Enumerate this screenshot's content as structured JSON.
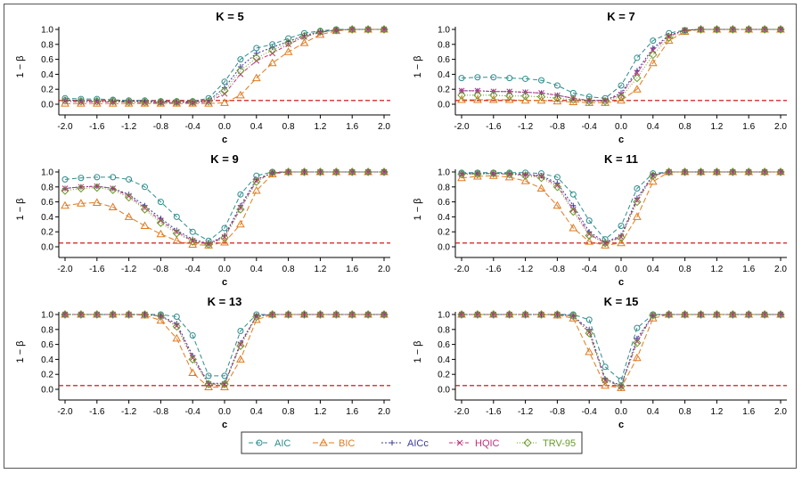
{
  "colors": {
    "AIC": "#2e8b8b",
    "BIC": "#e07a1f",
    "AICc": "#3b3b9a",
    "HQIC": "#c0307a",
    "TRV-95": "#6a9a2a",
    "reference": "#cc0000"
  },
  "markers": {
    "AIC": "circle",
    "BIC": "triangle",
    "AICc": "plus",
    "HQIC": "cross",
    "TRV-95": "diamond"
  },
  "legend": [
    "AIC",
    "BIC",
    "AICc",
    "HQIC",
    "TRV-95"
  ],
  "chart_data": [
    {
      "type": "line",
      "title": "K = 5",
      "xlabel": "c",
      "ylabel": "1 − β",
      "xlim": [
        -2.0,
        2.0
      ],
      "ylim": [
        0.0,
        1.0
      ],
      "reference_line": 0.05,
      "xticks": [
        "-2.0",
        "-1.6",
        "-1.2",
        "-0.8",
        "-0.4",
        "0.0",
        "0.4",
        "0.8",
        "1.2",
        "1.6",
        "2.0"
      ],
      "yticks": [
        "0.0",
        "0.2",
        "0.4",
        "0.6",
        "0.8",
        "1.0"
      ],
      "x": [
        -2.0,
        -1.8,
        -1.6,
        -1.4,
        -1.2,
        -1.0,
        -0.8,
        -0.6,
        -0.4,
        -0.2,
        0.0,
        0.2,
        0.4,
        0.6,
        0.8,
        1.0,
        1.2,
        1.4,
        1.6,
        1.8,
        2.0
      ],
      "series": [
        {
          "name": "AIC",
          "values": [
            0.08,
            0.07,
            0.07,
            0.06,
            0.05,
            0.05,
            0.04,
            0.04,
            0.04,
            0.08,
            0.3,
            0.6,
            0.75,
            0.8,
            0.88,
            0.95,
            0.98,
            1.0,
            1.0,
            1.0,
            1.0
          ]
        },
        {
          "name": "BIC",
          "values": [
            0.01,
            0.01,
            0.01,
            0.01,
            0.01,
            0.01,
            0.01,
            0.01,
            0.01,
            0.01,
            0.02,
            0.12,
            0.35,
            0.55,
            0.7,
            0.82,
            0.93,
            0.98,
            1.0,
            1.0,
            1.0
          ]
        },
        {
          "name": "AICc",
          "values": [
            0.06,
            0.05,
            0.05,
            0.04,
            0.04,
            0.04,
            0.03,
            0.03,
            0.03,
            0.05,
            0.22,
            0.5,
            0.68,
            0.76,
            0.84,
            0.92,
            0.97,
            0.99,
            1.0,
            1.0,
            1.0
          ]
        },
        {
          "name": "HQIC",
          "values": [
            0.04,
            0.03,
            0.03,
            0.03,
            0.03,
            0.02,
            0.02,
            0.02,
            0.02,
            0.03,
            0.14,
            0.4,
            0.58,
            0.68,
            0.8,
            0.9,
            0.96,
            0.99,
            1.0,
            1.0,
            1.0
          ]
        },
        {
          "name": "TRV-95",
          "values": [
            0.05,
            0.04,
            0.04,
            0.04,
            0.03,
            0.03,
            0.03,
            0.03,
            0.03,
            0.04,
            0.18,
            0.45,
            0.62,
            0.72,
            0.82,
            0.91,
            0.97,
            0.99,
            1.0,
            1.0,
            1.0
          ]
        }
      ]
    },
    {
      "type": "line",
      "title": "K = 7",
      "xlabel": "c",
      "ylabel": "1 − β",
      "xlim": [
        -2.0,
        2.0
      ],
      "ylim": [
        0.0,
        1.0
      ],
      "reference_line": 0.05,
      "xticks": [
        "-2.0",
        "-1.6",
        "-1.2",
        "-0.8",
        "-0.4",
        "0.0",
        "0.4",
        "0.8",
        "1.2",
        "1.6",
        "2.0"
      ],
      "yticks": [
        "0.0",
        "0.2",
        "0.4",
        "0.6",
        "0.8",
        "1.0"
      ],
      "x": [
        -2.0,
        -1.8,
        -1.6,
        -1.4,
        -1.2,
        -1.0,
        -0.8,
        -0.6,
        -0.4,
        -0.2,
        0.0,
        0.2,
        0.4,
        0.6,
        0.8,
        1.0,
        1.2,
        1.4,
        1.6,
        1.8,
        2.0
      ],
      "series": [
        {
          "name": "AIC",
          "values": [
            0.35,
            0.36,
            0.36,
            0.35,
            0.34,
            0.32,
            0.25,
            0.15,
            0.1,
            0.08,
            0.25,
            0.62,
            0.85,
            0.95,
            0.99,
            1.0,
            1.0,
            1.0,
            1.0,
            1.0,
            1.0
          ]
        },
        {
          "name": "BIC",
          "values": [
            0.06,
            0.06,
            0.06,
            0.06,
            0.05,
            0.05,
            0.04,
            0.03,
            0.02,
            0.02,
            0.05,
            0.2,
            0.55,
            0.85,
            0.97,
            1.0,
            1.0,
            1.0,
            1.0,
            1.0,
            1.0
          ]
        },
        {
          "name": "AICc",
          "values": [
            0.18,
            0.18,
            0.17,
            0.17,
            0.16,
            0.15,
            0.12,
            0.08,
            0.05,
            0.05,
            0.15,
            0.45,
            0.75,
            0.92,
            0.99,
            1.0,
            1.0,
            1.0,
            1.0,
            1.0,
            1.0
          ]
        },
        {
          "name": "HQIC",
          "values": [
            0.18,
            0.18,
            0.17,
            0.17,
            0.16,
            0.15,
            0.12,
            0.08,
            0.05,
            0.05,
            0.13,
            0.42,
            0.72,
            0.91,
            0.99,
            1.0,
            1.0,
            1.0,
            1.0,
            1.0,
            1.0
          ]
        },
        {
          "name": "TRV-95",
          "values": [
            0.12,
            0.12,
            0.12,
            0.11,
            0.11,
            0.1,
            0.08,
            0.06,
            0.04,
            0.04,
            0.1,
            0.35,
            0.66,
            0.89,
            0.98,
            1.0,
            1.0,
            1.0,
            1.0,
            1.0,
            1.0
          ]
        }
      ]
    },
    {
      "type": "line",
      "title": "K = 9",
      "xlabel": "c",
      "ylabel": "1 − β",
      "xlim": [
        -2.0,
        2.0
      ],
      "ylim": [
        0.0,
        1.0
      ],
      "reference_line": 0.05,
      "xticks": [
        "-2.0",
        "-1.6",
        "-1.2",
        "-0.8",
        "-0.4",
        "0.0",
        "0.4",
        "0.8",
        "1.2",
        "1.6",
        "2.0"
      ],
      "yticks": [
        "0.0",
        "0.2",
        "0.4",
        "0.6",
        "0.8",
        "1.0"
      ],
      "x": [
        -2.0,
        -1.8,
        -1.6,
        -1.4,
        -1.2,
        -1.0,
        -0.8,
        -0.6,
        -0.4,
        -0.2,
        0.0,
        0.2,
        0.4,
        0.6,
        0.8,
        1.0,
        1.2,
        1.4,
        1.6,
        1.8,
        2.0
      ],
      "series": [
        {
          "name": "AIC",
          "values": [
            0.9,
            0.92,
            0.93,
            0.93,
            0.9,
            0.8,
            0.6,
            0.4,
            0.2,
            0.08,
            0.25,
            0.7,
            0.95,
            1.0,
            1.0,
            1.0,
            1.0,
            1.0,
            1.0,
            1.0,
            1.0
          ]
        },
        {
          "name": "BIC",
          "values": [
            0.55,
            0.58,
            0.59,
            0.53,
            0.4,
            0.28,
            0.17,
            0.08,
            0.03,
            0.02,
            0.06,
            0.3,
            0.75,
            0.97,
            1.0,
            1.0,
            1.0,
            1.0,
            1.0,
            1.0,
            1.0
          ]
        },
        {
          "name": "AICc",
          "values": [
            0.78,
            0.8,
            0.81,
            0.78,
            0.7,
            0.55,
            0.38,
            0.22,
            0.1,
            0.04,
            0.15,
            0.55,
            0.9,
            0.99,
            1.0,
            1.0,
            1.0,
            1.0,
            1.0,
            1.0,
            1.0
          ]
        },
        {
          "name": "HQIC",
          "values": [
            0.78,
            0.8,
            0.81,
            0.78,
            0.68,
            0.52,
            0.35,
            0.2,
            0.08,
            0.04,
            0.13,
            0.52,
            0.88,
            0.99,
            1.0,
            1.0,
            1.0,
            1.0,
            1.0,
            1.0,
            1.0
          ]
        },
        {
          "name": "TRV-95",
          "values": [
            0.75,
            0.78,
            0.79,
            0.76,
            0.66,
            0.5,
            0.32,
            0.18,
            0.07,
            0.03,
            0.12,
            0.5,
            0.87,
            0.99,
            1.0,
            1.0,
            1.0,
            1.0,
            1.0,
            1.0,
            1.0
          ]
        }
      ]
    },
    {
      "type": "line",
      "title": "K = 11",
      "xlabel": "c",
      "ylabel": "1 − β",
      "xlim": [
        -2.0,
        2.0
      ],
      "ylim": [
        0.0,
        1.0
      ],
      "reference_line": 0.05,
      "xticks": [
        "-2.0",
        "-1.6",
        "-1.2",
        "-0.8",
        "-0.4",
        "0.0",
        "0.4",
        "0.8",
        "1.2",
        "1.6",
        "2.0"
      ],
      "yticks": [
        "0.0",
        "0.2",
        "0.4",
        "0.6",
        "0.8",
        "1.0"
      ],
      "x": [
        -2.0,
        -1.8,
        -1.6,
        -1.4,
        -1.2,
        -1.0,
        -0.8,
        -0.6,
        -0.4,
        -0.2,
        0.0,
        0.2,
        0.4,
        0.6,
        0.8,
        1.0,
        1.2,
        1.4,
        1.6,
        1.8,
        2.0
      ],
      "series": [
        {
          "name": "AIC",
          "values": [
            0.99,
            0.99,
            0.99,
            0.99,
            0.99,
            0.98,
            0.93,
            0.7,
            0.35,
            0.1,
            0.28,
            0.78,
            0.98,
            1.0,
            1.0,
            1.0,
            1.0,
            1.0,
            1.0,
            1.0,
            1.0
          ]
        },
        {
          "name": "BIC",
          "values": [
            0.92,
            0.94,
            0.95,
            0.93,
            0.88,
            0.78,
            0.55,
            0.25,
            0.07,
            0.02,
            0.05,
            0.4,
            0.87,
            1.0,
            1.0,
            1.0,
            1.0,
            1.0,
            1.0,
            1.0,
            1.0
          ]
        },
        {
          "name": "AICc",
          "values": [
            0.98,
            0.98,
            0.98,
            0.98,
            0.97,
            0.95,
            0.85,
            0.55,
            0.2,
            0.06,
            0.15,
            0.65,
            0.96,
            1.0,
            1.0,
            1.0,
            1.0,
            1.0,
            1.0,
            1.0,
            1.0
          ]
        },
        {
          "name": "HQIC",
          "values": [
            0.97,
            0.98,
            0.98,
            0.97,
            0.96,
            0.94,
            0.82,
            0.5,
            0.17,
            0.05,
            0.13,
            0.62,
            0.95,
            1.0,
            1.0,
            1.0,
            1.0,
            1.0,
            1.0,
            1.0,
            1.0
          ]
        },
        {
          "name": "TRV-95",
          "values": [
            0.97,
            0.97,
            0.98,
            0.97,
            0.95,
            0.92,
            0.8,
            0.47,
            0.15,
            0.05,
            0.12,
            0.6,
            0.95,
            1.0,
            1.0,
            1.0,
            1.0,
            1.0,
            1.0,
            1.0,
            1.0
          ]
        }
      ]
    },
    {
      "type": "line",
      "title": "K = 13",
      "xlabel": "c",
      "ylabel": "1 − β",
      "xlim": [
        -2.0,
        2.0
      ],
      "ylim": [
        0.0,
        1.0
      ],
      "reference_line": 0.05,
      "xticks": [
        "-2.0",
        "-1.6",
        "-1.2",
        "-0.8",
        "-0.4",
        "0.0",
        "0.4",
        "0.8",
        "1.2",
        "1.6",
        "2.0"
      ],
      "yticks": [
        "0.0",
        "0.2",
        "0.4",
        "0.6",
        "0.8",
        "1.0"
      ],
      "x": [
        -2.0,
        -1.8,
        -1.6,
        -1.4,
        -1.2,
        -1.0,
        -0.8,
        -0.6,
        -0.4,
        -0.2,
        0.0,
        0.2,
        0.4,
        0.6,
        0.8,
        1.0,
        1.2,
        1.4,
        1.6,
        1.8,
        2.0
      ],
      "series": [
        {
          "name": "AIC",
          "values": [
            1.0,
            1.0,
            1.0,
            1.0,
            1.0,
            1.0,
            1.0,
            0.97,
            0.72,
            0.18,
            0.18,
            0.78,
            1.0,
            1.0,
            1.0,
            1.0,
            1.0,
            1.0,
            1.0,
            1.0,
            1.0
          ]
        },
        {
          "name": "BIC",
          "values": [
            1.0,
            1.0,
            1.0,
            1.0,
            1.0,
            0.99,
            0.92,
            0.68,
            0.22,
            0.03,
            0.03,
            0.4,
            0.93,
            1.0,
            1.0,
            1.0,
            1.0,
            1.0,
            1.0,
            1.0,
            1.0
          ]
        },
        {
          "name": "AICc",
          "values": [
            1.0,
            1.0,
            1.0,
            1.0,
            1.0,
            1.0,
            0.98,
            0.88,
            0.45,
            0.08,
            0.08,
            0.62,
            0.98,
            1.0,
            1.0,
            1.0,
            1.0,
            1.0,
            1.0,
            1.0,
            1.0
          ]
        },
        {
          "name": "HQIC",
          "values": [
            1.0,
            1.0,
            1.0,
            1.0,
            1.0,
            1.0,
            0.98,
            0.85,
            0.42,
            0.07,
            0.07,
            0.6,
            0.98,
            1.0,
            1.0,
            1.0,
            1.0,
            1.0,
            1.0,
            1.0,
            1.0
          ]
        },
        {
          "name": "TRV-95",
          "values": [
            1.0,
            1.0,
            1.0,
            1.0,
            1.0,
            1.0,
            0.98,
            0.84,
            0.4,
            0.07,
            0.07,
            0.58,
            0.97,
            1.0,
            1.0,
            1.0,
            1.0,
            1.0,
            1.0,
            1.0,
            1.0
          ]
        }
      ]
    },
    {
      "type": "line",
      "title": "K = 15",
      "xlabel": "c",
      "ylabel": "1 − β",
      "xlim": [
        -2.0,
        2.0
      ],
      "ylim": [
        0.0,
        1.0
      ],
      "reference_line": 0.05,
      "xticks": [
        "-2.0",
        "-1.6",
        "-1.2",
        "-0.8",
        "-0.4",
        "0.0",
        "0.4",
        "0.8",
        "1.2",
        "1.6",
        "2.0"
      ],
      "yticks": [
        "0.0",
        "0.2",
        "0.4",
        "0.6",
        "0.8",
        "1.0"
      ],
      "x": [
        -2.0,
        -1.8,
        -1.6,
        -1.4,
        -1.2,
        -1.0,
        -0.8,
        -0.6,
        -0.4,
        -0.2,
        0.0,
        0.2,
        0.4,
        0.6,
        0.8,
        1.0,
        1.2,
        1.4,
        1.6,
        1.8,
        2.0
      ],
      "series": [
        {
          "name": "AIC",
          "values": [
            1.0,
            1.0,
            1.0,
            1.0,
            1.0,
            1.0,
            1.0,
            1.0,
            0.93,
            0.3,
            0.12,
            0.82,
            1.0,
            1.0,
            1.0,
            1.0,
            1.0,
            1.0,
            1.0,
            1.0,
            1.0
          ]
        },
        {
          "name": "BIC",
          "values": [
            1.0,
            1.0,
            1.0,
            1.0,
            1.0,
            1.0,
            0.99,
            0.95,
            0.5,
            0.05,
            0.02,
            0.42,
            0.95,
            1.0,
            1.0,
            1.0,
            1.0,
            1.0,
            1.0,
            1.0,
            1.0
          ]
        },
        {
          "name": "AICc",
          "values": [
            1.0,
            1.0,
            1.0,
            1.0,
            1.0,
            1.0,
            1.0,
            0.98,
            0.8,
            0.14,
            0.05,
            0.68,
            0.99,
            1.0,
            1.0,
            1.0,
            1.0,
            1.0,
            1.0,
            1.0,
            1.0
          ]
        },
        {
          "name": "HQIC",
          "values": [
            1.0,
            1.0,
            1.0,
            1.0,
            1.0,
            1.0,
            1.0,
            0.98,
            0.76,
            0.12,
            0.04,
            0.64,
            0.99,
            1.0,
            1.0,
            1.0,
            1.0,
            1.0,
            1.0,
            1.0,
            1.0
          ]
        },
        {
          "name": "TRV-95",
          "values": [
            1.0,
            1.0,
            1.0,
            1.0,
            1.0,
            1.0,
            1.0,
            0.98,
            0.75,
            0.12,
            0.04,
            0.62,
            0.99,
            1.0,
            1.0,
            1.0,
            1.0,
            1.0,
            1.0,
            1.0,
            1.0
          ]
        }
      ]
    }
  ]
}
